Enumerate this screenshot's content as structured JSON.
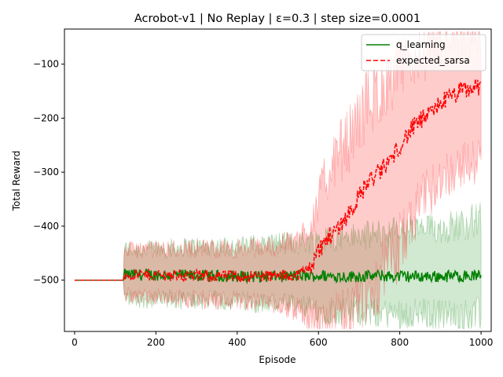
{
  "chart_data": {
    "type": "line",
    "title": "Acrobot-v1 | No Replay | ε=0.3 | step size=0.0001",
    "xlabel": "Episode",
    "ylabel": "Total Reward",
    "xlim": [
      -25,
      1025
    ],
    "ylim": [
      -595,
      -35
    ],
    "xticks": [
      0,
      200,
      400,
      600,
      800,
      1000
    ],
    "yticks": [
      -500,
      -400,
      -300,
      -200,
      -100
    ],
    "xtick_labels": [
      "0",
      "200",
      "400",
      "600",
      "800",
      "1000"
    ],
    "ytick_labels": [
      "−500",
      "−400",
      "−300",
      "−200",
      "−100"
    ],
    "legend_position": "top-right",
    "grid": false,
    "series": [
      {
        "name": "q_learning",
        "color": "#008000",
        "style": "solid",
        "shaded_band": true,
        "band_color": "#008000",
        "x": [
          0,
          120,
          121,
          200,
          300,
          400,
          500,
          550,
          600,
          650,
          700,
          750,
          800,
          850,
          900,
          950,
          1000
        ],
        "mean": [
          -500,
          -500,
          -490,
          -490,
          -492,
          -493,
          -493,
          -492,
          -492,
          -493,
          -493,
          -492,
          -493,
          -493,
          -493,
          -492,
          -492
        ],
        "lower": [
          -500,
          -500,
          -525,
          -530,
          -530,
          -530,
          -535,
          -540,
          -545,
          -548,
          -548,
          -550,
          -550,
          -550,
          -552,
          -552,
          -552
        ],
        "upper": [
          -500,
          -500,
          -450,
          -450,
          -445,
          -445,
          -440,
          -440,
          -435,
          -430,
          -430,
          -425,
          -420,
          -420,
          -415,
          -410,
          -400
        ]
      },
      {
        "name": "expected_sarsa",
        "color": "#ff0000",
        "style": "dashed",
        "shaded_band": true,
        "band_color": "#ff0000",
        "x": [
          0,
          120,
          121,
          200,
          300,
          400,
          500,
          550,
          580,
          600,
          620,
          650,
          680,
          700,
          720,
          750,
          780,
          800,
          830,
          850,
          880,
          900,
          930,
          950,
          980,
          1000
        ],
        "mean": [
          -500,
          -500,
          -490,
          -490,
          -492,
          -493,
          -492,
          -490,
          -475,
          -445,
          -425,
          -400,
          -370,
          -345,
          -320,
          -300,
          -275,
          -250,
          -220,
          -205,
          -190,
          -170,
          -160,
          -150,
          -145,
          -140
        ],
        "lower": [
          -500,
          -500,
          -520,
          -525,
          -528,
          -530,
          -535,
          -545,
          -555,
          -560,
          -560,
          -555,
          -545,
          -525,
          -500,
          -470,
          -440,
          -410,
          -370,
          -340,
          -310,
          -290,
          -280,
          -270,
          -265,
          -260
        ],
        "upper": [
          -500,
          -500,
          -450,
          -450,
          -448,
          -450,
          -445,
          -435,
          -410,
          -370,
          -330,
          -290,
          -260,
          -230,
          -200,
          -175,
          -155,
          -135,
          -120,
          -105,
          -95,
          -85,
          -80,
          -75,
          -72,
          -70
        ]
      }
    ]
  }
}
